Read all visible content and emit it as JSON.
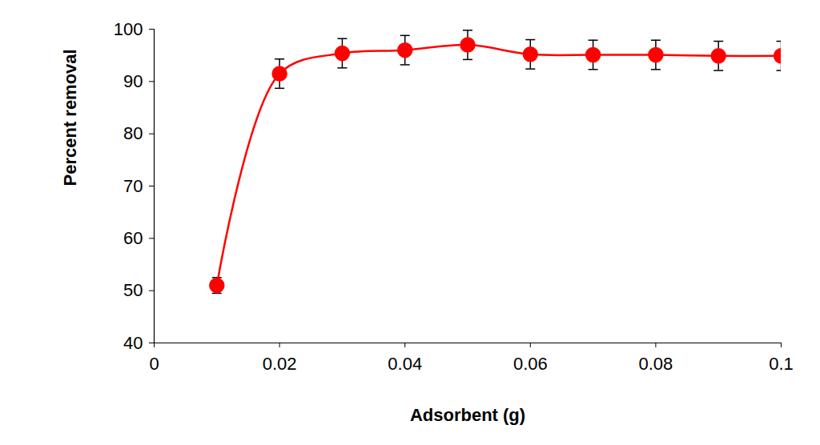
{
  "chart_data": {
    "type": "line",
    "x_label": "Adsorbent (g)",
    "y_label": "Percent removal",
    "x": [
      0.01,
      0.02,
      0.03,
      0.04,
      0.05,
      0.06,
      0.07,
      0.08,
      0.09,
      0.1
    ],
    "values": [
      51,
      91.5,
      95.4,
      96,
      97,
      95.2,
      95.1,
      95.1,
      94.9,
      94.9
    ],
    "errors": [
      1.5,
      2.8,
      2.8,
      2.8,
      2.8,
      2.8,
      2.8,
      2.8,
      2.8,
      2.8
    ],
    "color": "#ff0000",
    "marker": "circle",
    "xlim": [
      0,
      0.1
    ],
    "xticks": [
      0,
      0.02,
      0.04,
      0.06,
      0.08,
      0.1
    ],
    "ylim": [
      40,
      100
    ],
    "yticks": [
      40,
      50,
      60,
      70,
      80,
      90,
      100
    ],
    "grid": false
  }
}
